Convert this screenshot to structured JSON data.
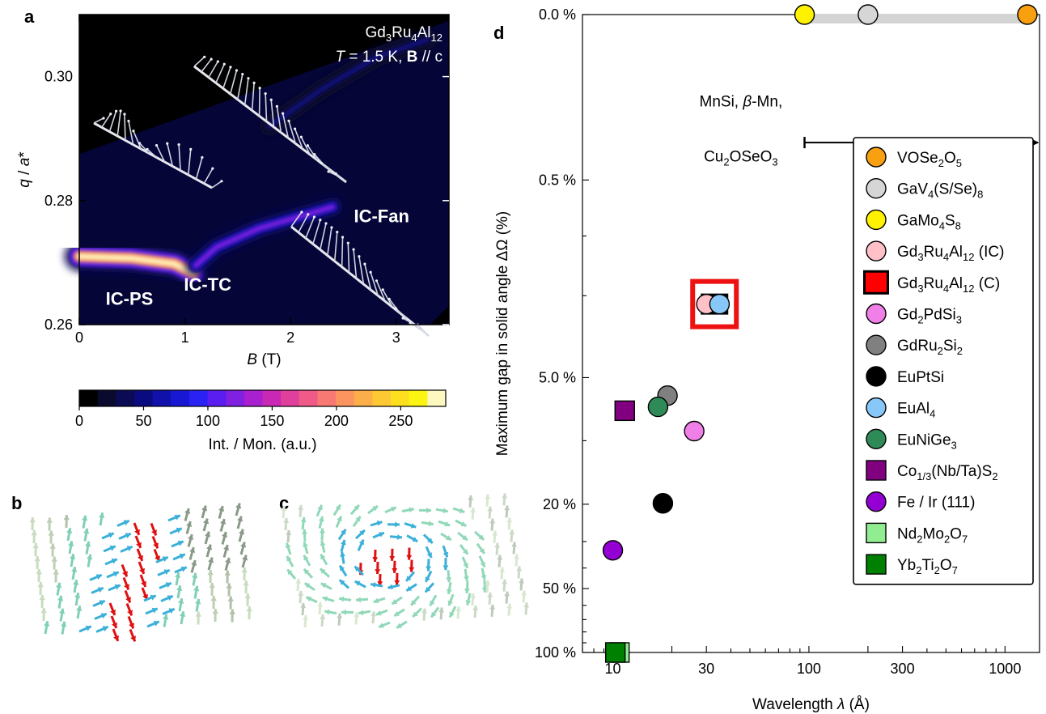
{
  "panels": {
    "a": "a",
    "b": "b",
    "c": "c",
    "d": "d"
  },
  "chart_data": [
    {
      "type": "heatmap",
      "panel": "a",
      "sample": {
        "main": "Gd",
        "s1": "3",
        "m2": "Ru",
        "s2": "4",
        "m3": "Al",
        "s3": "12"
      },
      "conditions": {
        "T": "T",
        "eq": " = 1.5 K, ",
        "B": "B",
        "rest": " // c"
      },
      "xlabel": {
        "sym": "B",
        "unit": " (T)"
      },
      "ylabel": {
        "sym": "q",
        "rest": " / ",
        "sym2": "a",
        "star": "*"
      },
      "xlim": [
        0,
        3.5
      ],
      "ylim": [
        0.26,
        0.31
      ],
      "x_ticks": [
        0,
        1,
        2,
        3
      ],
      "x_tick_labels": [
        "0",
        "1",
        "2",
        "3"
      ],
      "y_ticks": [
        0.26,
        0.28,
        0.3
      ],
      "y_tick_labels": [
        "0.26",
        "0.28",
        "0.30"
      ],
      "phases": [
        {
          "label": "IC-PS",
          "B": 0.25,
          "q": 0.2632
        },
        {
          "label": "IC-TC",
          "B": 1.45,
          "q": 0.2655
        },
        {
          "label": "IC-Fan",
          "B": 2.6,
          "q": 0.2765
        }
      ],
      "intensity_ridges": [
        {
          "segment": "IC-PS",
          "points": [
            [
              0.0,
              0.271
            ],
            [
              0.5,
              0.2707
            ],
            [
              0.9,
              0.2698
            ],
            [
              1.08,
              0.2683
            ]
          ],
          "peak": 280
        },
        {
          "segment": "IC-TC",
          "points": [
            [
              1.1,
              0.2695
            ],
            [
              1.3,
              0.2725
            ],
            [
              1.7,
              0.2755
            ],
            [
              2.1,
              0.2775
            ],
            [
              2.4,
              0.279
            ]
          ],
          "peak": 120
        },
        {
          "segment": "IC-Fan",
          "points": [
            [
              1.8,
              0.292
            ],
            [
              2.3,
              0.298
            ],
            [
              2.8,
              0.303
            ],
            [
              3.3,
              0.306
            ]
          ],
          "peak": 40
        }
      ],
      "colorbar": {
        "label": "Int. / Mon. (a.u.)",
        "range": [
          0,
          285
        ],
        "ticks": [
          0,
          50,
          100,
          150,
          200,
          250
        ],
        "tick_labels": [
          "0",
          "50",
          "100",
          "150",
          "200",
          "250"
        ],
        "colors": [
          "#000000",
          "#0a0a2e",
          "#0a0a55",
          "#0b0b80",
          "#1010aa",
          "#1818d2",
          "#2a22f2",
          "#5a1ef0",
          "#8020e0",
          "#a820d0",
          "#c828b4",
          "#e0409c",
          "#f05a88",
          "#f87874",
          "#fc9460",
          "#fcae4a",
          "#fcc834",
          "#fce020",
          "#fcf412",
          "#fdf8c0"
        ]
      }
    },
    {
      "type": "scatter",
      "panel": "d",
      "xlabel": {
        "text": "Wavelength ",
        "sym": "λ",
        "unit": " (Å)"
      },
      "ylabel": "Maximum gap in solid angle ΔΩ (%)",
      "x_scale": "log",
      "xlim": [
        7,
        1500
      ],
      "x_ticks": [
        10,
        30,
        100,
        300,
        1000
      ],
      "x_tick_labels": [
        "10",
        "30",
        "100",
        "300",
        "1000"
      ],
      "y_scale": "log (ΔΩ + 0.1)",
      "ylim": [
        0,
        100
      ],
      "y_ticks": [
        0,
        0.5,
        5,
        20,
        50,
        100
      ],
      "y_tick_labels": [
        "0.0 %",
        "0.5 %",
        "5.0 %",
        "20 %",
        "50 %",
        "100 %"
      ],
      "range_annotation": {
        "line1": "MnSi, ",
        "beta": "β",
        "line1b": "-Mn,",
        "line2a": "Cu",
        "s2": "2",
        "line2b": "OSeO",
        "s3": "3",
        "from": 95,
        "to": 1500,
        "y": 0.3
      },
      "gray_band": {
        "from": 95,
        "to": 1300,
        "y": 0
      },
      "highlight_box": {
        "x": 33,
        "y": 2.2,
        "color": "#ee1111"
      },
      "series": [
        {
          "name": "VOSe2O5",
          "legend": [
            [
              "VOSe",
              ""
            ],
            [
              "2",
              "sub"
            ],
            [
              "O",
              ""
            ],
            [
              "5",
              "sub"
            ]
          ],
          "marker": "circle",
          "color": "#f8a010",
          "points": [
            [
              1300,
              0
            ]
          ]
        },
        {
          "name": "GaV4(S/Se)8",
          "legend": [
            [
              "GaV",
              ""
            ],
            [
              "4",
              "sub"
            ],
            [
              "(S/Se)",
              ""
            ],
            [
              "8",
              "sub"
            ]
          ],
          "marker": "circle",
          "color": "#d6d6d6",
          "points": [
            [
              200,
              0
            ]
          ]
        },
        {
          "name": "GaMo4S8",
          "legend": [
            [
              "GaMo",
              ""
            ],
            [
              "4",
              "sub"
            ],
            [
              "S",
              ""
            ],
            [
              "8",
              "sub"
            ]
          ],
          "marker": "circle",
          "color": "#fff200",
          "points": [
            [
              95,
              0
            ]
          ]
        },
        {
          "name": "Gd3Ru4Al12 (IC)",
          "legend": [
            [
              "Gd",
              ""
            ],
            [
              "3",
              "sub"
            ],
            [
              "Ru",
              ""
            ],
            [
              "4",
              "sub"
            ],
            [
              "Al",
              ""
            ],
            [
              "12",
              "sub"
            ],
            [
              " (IC)",
              ""
            ]
          ],
          "marker": "circle",
          "color": "#ffc0c8",
          "points": [
            [
              30,
              2.2
            ]
          ]
        },
        {
          "name": "Gd3Ru4Al12 (C)",
          "legend": [
            [
              "Gd",
              ""
            ],
            [
              "3",
              "sub"
            ],
            [
              "Ru",
              ""
            ],
            [
              "4",
              "sub"
            ],
            [
              "Al",
              ""
            ],
            [
              "12",
              "sub"
            ],
            [
              " (C)",
              ""
            ]
          ],
          "marker": "square-red",
          "color": "#ff0000",
          "points": [
            [
              33,
              2.2
            ]
          ]
        },
        {
          "name": "Gd2PdSi3",
          "legend": [
            [
              "Gd",
              ""
            ],
            [
              "2",
              "sub"
            ],
            [
              "PdSi",
              ""
            ],
            [
              "3",
              "sub"
            ]
          ],
          "marker": "circle",
          "color": "#f080e8",
          "points": [
            [
              26,
              9
            ]
          ]
        },
        {
          "name": "GdRu2Si2",
          "legend": [
            [
              "GdRu",
              ""
            ],
            [
              "2",
              "sub"
            ],
            [
              "Si",
              ""
            ],
            [
              "2",
              "sub"
            ]
          ],
          "marker": "circle",
          "color": "#808080",
          "points": [
            [
              19,
              6.1
            ]
          ]
        },
        {
          "name": "EuPtSi",
          "legend": [
            [
              "EuPtSi",
              ""
            ]
          ],
          "marker": "circle",
          "color": "#000000",
          "points": [
            [
              18,
              19.8
            ]
          ]
        },
        {
          "name": "EuAl4",
          "legend": [
            [
              "EuAl",
              ""
            ],
            [
              "4",
              "sub"
            ]
          ],
          "marker": "circle",
          "color": "#88c8f8",
          "points": [
            [
              35,
              2.2
            ]
          ]
        },
        {
          "name": "EuNiGe3",
          "legend": [
            [
              "EuNiGe",
              ""
            ],
            [
              "3",
              "sub"
            ]
          ],
          "marker": "circle",
          "color": "#2e8b57",
          "points": [
            [
              17,
              6.9
            ]
          ]
        },
        {
          "name": "Co1/3(Nb/Ta)S2",
          "legend": [
            [
              "Co",
              ""
            ],
            [
              "1/3",
              "sub"
            ],
            [
              "(Nb/Ta)S",
              ""
            ],
            [
              "2",
              "sub"
            ]
          ],
          "marker": "square",
          "color": "#800080",
          "points": [
            [
              11.5,
              7.2
            ]
          ]
        },
        {
          "name": "Fe/Ir(111)",
          "legend": [
            [
              "Fe / Ir (111)",
              ""
            ]
          ],
          "marker": "circle",
          "color": "#9400d3",
          "points": [
            [
              10,
              33
            ]
          ]
        },
        {
          "name": "Nd2Mo2O7",
          "legend": [
            [
              "Nd",
              ""
            ],
            [
              "2",
              "sub"
            ],
            [
              "Mo",
              ""
            ],
            [
              "2",
              "sub"
            ],
            [
              "O",
              ""
            ],
            [
              "7",
              "sub"
            ]
          ],
          "marker": "square",
          "color": "#90ee90",
          "points": [
            [
              10.8,
              100
            ]
          ]
        },
        {
          "name": "Yb2Ti2O7",
          "legend": [
            [
              "Yb",
              ""
            ],
            [
              "2",
              "sub"
            ],
            [
              "Ti",
              ""
            ],
            [
              "2",
              "sub"
            ],
            [
              "O",
              ""
            ],
            [
              "7",
              "sub"
            ]
          ],
          "marker": "square",
          "color": "#008000",
          "points": [
            [
              10.3,
              100
            ]
          ]
        }
      ]
    }
  ]
}
